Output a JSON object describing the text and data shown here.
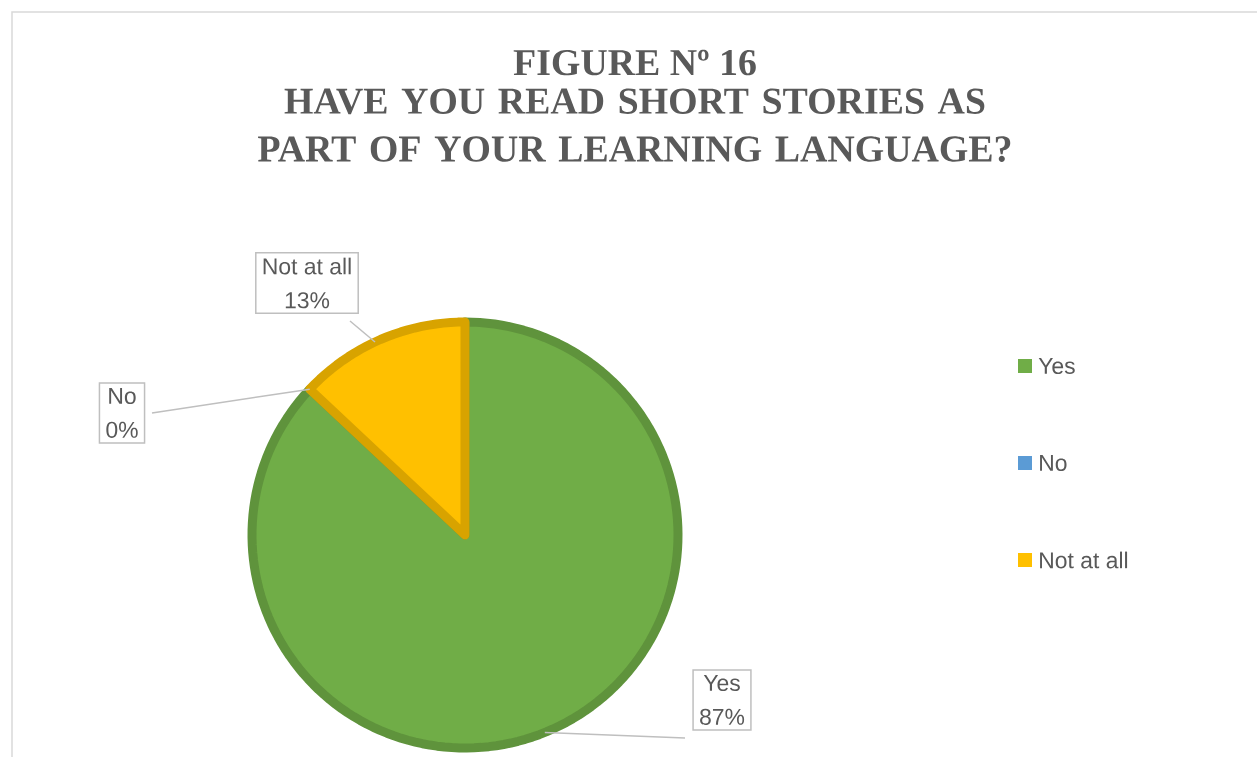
{
  "chart_data": {
    "type": "pie",
    "title": "FIGURE Nº 16",
    "subtitle": "HAVE YOU READ SHORT STORIES AS PART OF YOUR LEARNING LANGUAGE?",
    "categories": [
      "Yes",
      "No",
      "Not at all"
    ],
    "values": [
      87,
      0,
      13
    ],
    "colors": [
      "#70ad47",
      "#5b9bd5",
      "#ffc000"
    ],
    "value_labels": [
      "87%",
      "0%",
      "13%"
    ],
    "legend": "right"
  }
}
